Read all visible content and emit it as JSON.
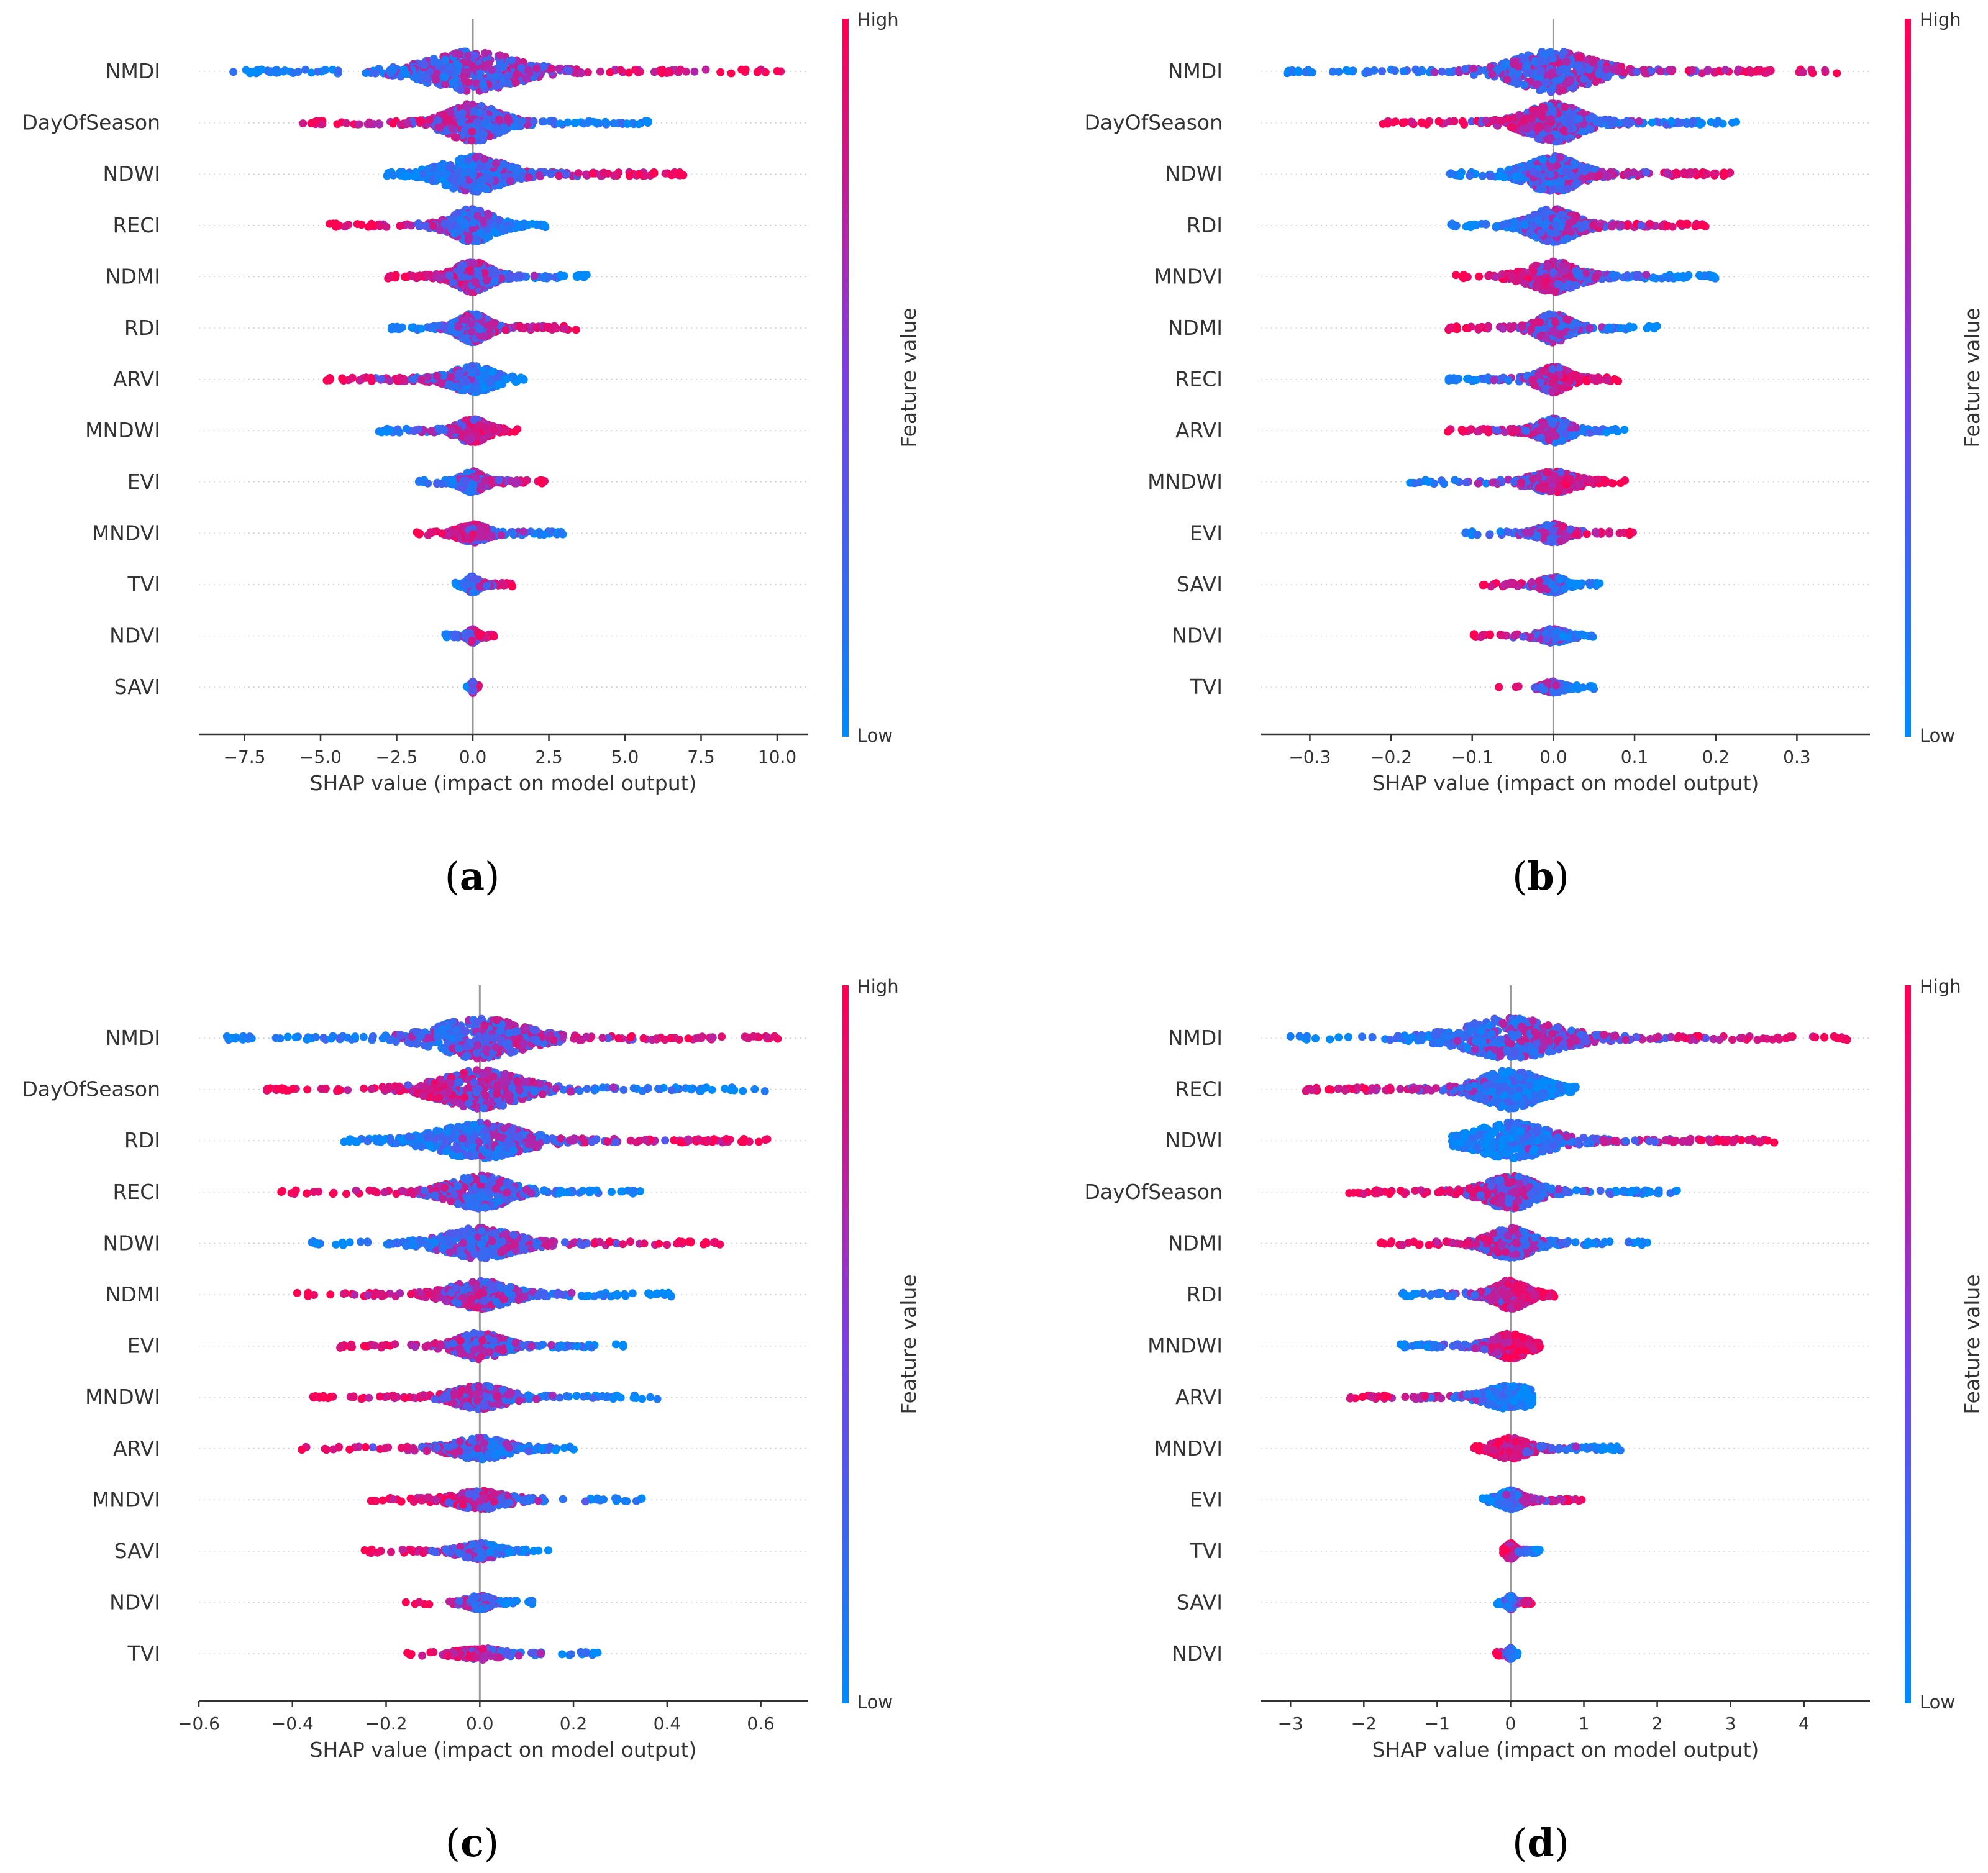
{
  "colors": {
    "low": "#008BFB",
    "mid": "#7B3FE4",
    "high": "#FF0052",
    "axis": "#333333",
    "zero": "#999999",
    "grid": "#CCCCCC"
  },
  "chart_data": [
    {
      "type": "scatter",
      "caption": "a",
      "features": [
        "NMDI",
        "DayOfSeason",
        "NDWI",
        "RECI",
        "NDMI",
        "RDI",
        "ARVI",
        "MNDWI",
        "EVI",
        "MNDVI",
        "TVI",
        "NDVI",
        "SAVI"
      ],
      "xlim": [
        -9.0,
        11.0
      ],
      "xticks": [
        -7.5,
        -5.0,
        -2.5,
        0.0,
        2.5,
        5.0,
        7.5,
        10.0
      ],
      "xtick_labels": [
        "−7.5",
        "−5.0",
        "−2.5",
        "0.0",
        "2.5",
        "5.0",
        "7.5",
        "10.0"
      ],
      "xlabel": "SHAP value (impact on model output)",
      "colorbar_label": "Feature value",
      "colorbar_high": "High",
      "colorbar_low": "Low",
      "ranges": [
        [
          -8.0,
          10.2
        ],
        [
          -5.6,
          5.8
        ],
        [
          -2.9,
          7.0
        ],
        [
          -4.7,
          2.4
        ],
        [
          -2.8,
          3.8
        ],
        [
          -2.7,
          3.4
        ],
        [
          -4.8,
          1.7
        ],
        [
          -3.2,
          1.5
        ],
        [
          -1.8,
          2.4
        ],
        [
          -1.9,
          3.0
        ],
        [
          -0.6,
          1.3
        ],
        [
          -0.9,
          0.7
        ],
        [
          -0.2,
          0.2
        ]
      ],
      "high_side": [
        1,
        -1,
        1,
        -1,
        -1,
        1,
        -1,
        1,
        1,
        -1,
        1,
        1,
        1
      ]
    },
    {
      "type": "scatter",
      "caption": "b",
      "features": [
        "NMDI",
        "DayOfSeason",
        "NDWI",
        "RDI",
        "MNDVI",
        "NDMI",
        "RECI",
        "ARVI",
        "MNDWI",
        "EVI",
        "SAVI",
        "NDVI",
        "TVI"
      ],
      "xlim": [
        -0.36,
        0.39
      ],
      "xticks": [
        -0.3,
        -0.2,
        -0.1,
        0.0,
        0.1,
        0.2,
        0.3
      ],
      "xtick_labels": [
        "−0.3",
        "−0.2",
        "−0.1",
        "0.0",
        "0.1",
        "0.2",
        "0.3"
      ],
      "xlabel": "SHAP value (impact on model output)",
      "colorbar_label": "Feature value",
      "colorbar_high": "High",
      "colorbar_low": "Low",
      "ranges": [
        [
          -0.33,
          0.35
        ],
        [
          -0.21,
          0.23
        ],
        [
          -0.13,
          0.22
        ],
        [
          -0.13,
          0.19
        ],
        [
          -0.12,
          0.2
        ],
        [
          -0.13,
          0.13
        ],
        [
          -0.13,
          0.08
        ],
        [
          -0.13,
          0.09
        ],
        [
          -0.18,
          0.09
        ],
        [
          -0.11,
          0.1
        ],
        [
          -0.09,
          0.06
        ],
        [
          -0.1,
          0.05
        ],
        [
          -0.07,
          0.05
        ]
      ],
      "high_side": [
        1,
        -1,
        1,
        1,
        -1,
        -1,
        1,
        -1,
        1,
        1,
        -1,
        -1,
        -1
      ]
    },
    {
      "type": "scatter",
      "caption": "c",
      "features": [
        "NMDI",
        "DayOfSeason",
        "RDI",
        "RECI",
        "NDWI",
        "NDMI",
        "EVI",
        "MNDWI",
        "ARVI",
        "MNDVI",
        "SAVI",
        "NDVI",
        "TVI"
      ],
      "xlim": [
        -0.6,
        0.7
      ],
      "xticks": [
        -0.6,
        -0.4,
        -0.2,
        0.0,
        0.2,
        0.4,
        0.6
      ],
      "xtick_labels": [
        "−0.6",
        "−0.4",
        "−0.2",
        "0.0",
        "0.2",
        "0.4",
        "0.6"
      ],
      "xlabel": "SHAP value (impact on model output)",
      "colorbar_label": "Feature value",
      "colorbar_high": "High",
      "colorbar_low": "Low",
      "ranges": [
        [
          -0.54,
          0.64
        ],
        [
          -0.46,
          0.61
        ],
        [
          -0.29,
          0.62
        ],
        [
          -0.43,
          0.35
        ],
        [
          -0.37,
          0.52
        ],
        [
          -0.39,
          0.41
        ],
        [
          -0.3,
          0.32
        ],
        [
          -0.36,
          0.38
        ],
        [
          -0.38,
          0.23
        ],
        [
          -0.24,
          0.35
        ],
        [
          -0.25,
          0.15
        ],
        [
          -0.16,
          0.12
        ],
        [
          -0.16,
          0.26
        ]
      ],
      "high_side": [
        1,
        -1,
        1,
        -1,
        1,
        -1,
        -1,
        -1,
        -1,
        -1,
        -1,
        -1,
        -1
      ]
    },
    {
      "type": "scatter",
      "caption": "d",
      "features": [
        "NMDI",
        "RECI",
        "NDWI",
        "DayOfSeason",
        "NDMI",
        "RDI",
        "MNDWI",
        "ARVI",
        "MNDVI",
        "EVI",
        "TVI",
        "SAVI",
        "NDVI"
      ],
      "xlim": [
        -3.4,
        4.9
      ],
      "xticks": [
        -3,
        -2,
        -1,
        0,
        1,
        2,
        3,
        4
      ],
      "xtick_labels": [
        "−3",
        "−2",
        "−1",
        "0",
        "1",
        "2",
        "3",
        "4"
      ],
      "xlabel": "SHAP value (impact on model output)",
      "colorbar_label": "Feature value",
      "colorbar_high": "High",
      "colorbar_low": "Low",
      "ranges": [
        [
          -3.0,
          4.6
        ],
        [
          -2.8,
          0.9
        ],
        [
          -0.8,
          3.6
        ],
        [
          -2.2,
          2.3
        ],
        [
          -1.8,
          1.9
        ],
        [
          -1.5,
          0.6
        ],
        [
          -1.5,
          0.4
        ],
        [
          -2.2,
          0.3
        ],
        [
          -0.5,
          1.5
        ],
        [
          -0.4,
          1.0
        ],
        [
          -0.1,
          0.4
        ],
        [
          -0.2,
          0.3
        ],
        [
          -0.2,
          0.1
        ]
      ],
      "high_side": [
        1,
        -1,
        1,
        -1,
        -1,
        1,
        1,
        -1,
        -1,
        1,
        -1,
        1,
        -1
      ]
    }
  ]
}
